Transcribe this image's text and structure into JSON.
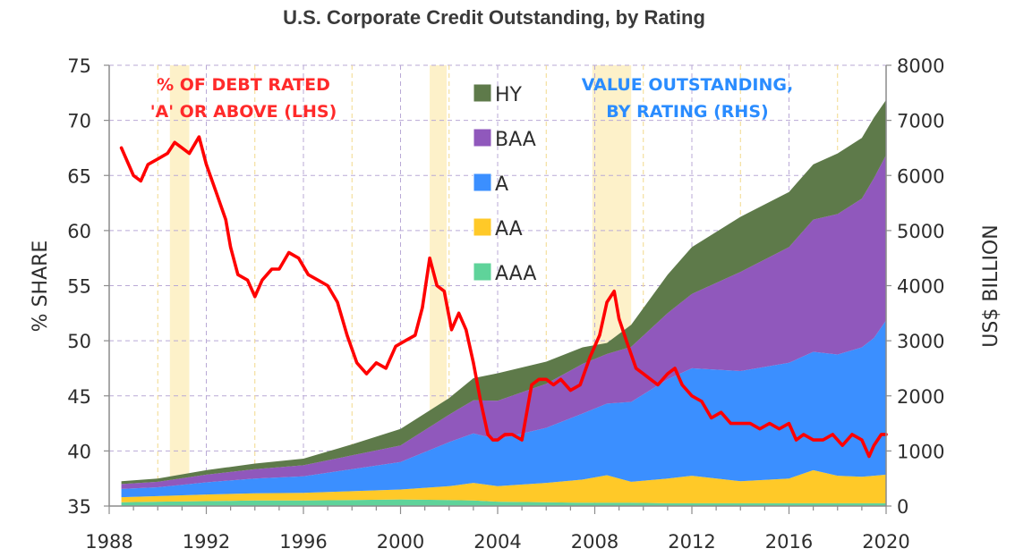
{
  "chart_data": {
    "type": "area",
    "title": "U.S. Corporate Credit Outstanding, by Rating",
    "ylabel_left": "% SHARE",
    "ylabel_right": "US$ BILLION",
    "xlim": [
      1988,
      2020
    ],
    "ylim_left": [
      35,
      75
    ],
    "ylim_right": [
      0,
      8000
    ],
    "x_ticks": [
      1988,
      1992,
      1996,
      2000,
      2004,
      2008,
      2012,
      2016,
      2020
    ],
    "y_left_ticks": [
      35,
      40,
      45,
      50,
      55,
      60,
      65,
      70,
      75
    ],
    "y_right_ticks": [
      0,
      1000,
      2000,
      3000,
      4000,
      5000,
      6000,
      7000,
      8000
    ],
    "grid": true,
    "legend_position": "top-center",
    "recession_shading": [
      [
        1990.5,
        1991.3
      ],
      [
        2001.2,
        2001.9
      ],
      [
        2007.9,
        2009.5
      ]
    ],
    "annotations": [
      {
        "lines": [
          "% OF DEBT RATED",
          "'A' OR ABOVE (LHS)"
        ],
        "color": "#ff2a2a"
      },
      {
        "lines": [
          "VALUE OUTSTANDING,",
          "BY RATING (RHS)"
        ],
        "color": "#2a8cff"
      }
    ],
    "x": [
      1988.5,
      1990,
      1992,
      1994,
      1996,
      1998,
      2000,
      2002,
      2003,
      2004,
      2006,
      2007.5,
      2008.5,
      2009.5,
      2011,
      2012,
      2014,
      2016,
      2017,
      2018,
      2019,
      2019.5,
      2020
    ],
    "series": [
      {
        "name": "AAA",
        "axis": "right",
        "color": "#5fd39a",
        "values": [
          70,
          80,
          90,
          100,
          100,
          110,
          120,
          110,
          100,
          80,
          70,
          60,
          60,
          60,
          50,
          50,
          50,
          50,
          50,
          50,
          50,
          50,
          50
        ]
      },
      {
        "name": "AA",
        "axis": "right",
        "color": "#ffc928",
        "values": [
          90,
          100,
          120,
          130,
          140,
          160,
          180,
          250,
          320,
          280,
          350,
          420,
          500,
          380,
          450,
          500,
          400,
          450,
          600,
          500,
          480,
          500,
          520
        ]
      },
      {
        "name": "A",
        "axis": "right",
        "color": "#3b8fff",
        "values": [
          150,
          160,
          220,
          270,
          300,
          400,
          500,
          800,
          900,
          850,
          1000,
          1200,
          1300,
          1450,
          1800,
          1950,
          2000,
          2100,
          2150,
          2200,
          2350,
          2500,
          2800
        ]
      },
      {
        "name": "BAA",
        "axis": "right",
        "color": "#9058bc",
        "values": [
          90,
          100,
          140,
          170,
          200,
          250,
          300,
          500,
          600,
          700,
          800,
          900,
          900,
          1000,
          1200,
          1350,
          1800,
          2100,
          2400,
          2550,
          2700,
          2900,
          3000
        ]
      },
      {
        "name": "HY",
        "axis": "right",
        "color": "#5e7a4a",
        "values": [
          50,
          60,
          80,
          100,
          120,
          200,
          300,
          300,
          400,
          500,
          400,
          300,
          200,
          400,
          700,
          850,
          1000,
          1000,
          1000,
          1100,
          1100,
          1100,
          1000
        ]
      },
      {
        "name": "% OF DEBT RATED 'A' OR ABOVE",
        "axis": "left",
        "color": "#ff0000",
        "x": [
          1988.5,
          1988.8,
          1989.0,
          1989.3,
          1989.6,
          1990.0,
          1990.4,
          1990.7,
          1991.0,
          1991.3,
          1991.7,
          1992.0,
          1992.4,
          1992.8,
          1993.0,
          1993.3,
          1993.7,
          1994.0,
          1994.3,
          1994.7,
          1995.0,
          1995.4,
          1995.8,
          1996.2,
          1996.6,
          1997.0,
          1997.4,
          1997.8,
          1998.2,
          1998.6,
          1999.0,
          1999.4,
          1999.8,
          2000.2,
          2000.6,
          2000.9,
          2001.2,
          2001.5,
          2001.8,
          2002.1,
          2002.4,
          2002.7,
          2003.0,
          2003.3,
          2003.6,
          2003.8,
          2004.0,
          2004.3,
          2004.6,
          2005.0,
          2005.4,
          2005.7,
          2006.0,
          2006.3,
          2006.6,
          2007.0,
          2007.4,
          2007.8,
          2008.2,
          2008.5,
          2008.8,
          2009.0,
          2009.3,
          2009.7,
          2010.0,
          2010.3,
          2010.6,
          2011.0,
          2011.3,
          2011.6,
          2012.0,
          2012.4,
          2012.8,
          2013.2,
          2013.6,
          2014.0,
          2014.4,
          2014.8,
          2015.2,
          2015.6,
          2016.0,
          2016.3,
          2016.6,
          2017.0,
          2017.4,
          2017.8,
          2018.2,
          2018.6,
          2019.0,
          2019.3,
          2019.5,
          2019.8,
          2020.0
        ],
        "values": [
          67.5,
          66.0,
          65.0,
          64.5,
          66.0,
          66.5,
          67.0,
          68.0,
          67.5,
          67.0,
          68.5,
          66.0,
          63.5,
          61.0,
          58.5,
          56.0,
          55.5,
          54.0,
          55.5,
          56.5,
          56.5,
          58.0,
          57.5,
          56.0,
          55.5,
          55.0,
          53.5,
          50.5,
          48.0,
          47.0,
          48.0,
          47.5,
          49.5,
          50.0,
          50.5,
          53.0,
          57.5,
          55.0,
          54.5,
          51.0,
          52.5,
          51.0,
          48.0,
          44.5,
          41.5,
          41.0,
          41.0,
          41.5,
          41.5,
          41.0,
          46.0,
          46.5,
          46.5,
          46.0,
          46.5,
          45.5,
          46.0,
          48.5,
          50.5,
          53.5,
          54.5,
          52.0,
          50.0,
          47.5,
          47.0,
          46.5,
          46.0,
          47.0,
          47.5,
          46.0,
          45.0,
          44.5,
          43.0,
          43.5,
          42.5,
          42.5,
          42.5,
          42.0,
          42.5,
          42.0,
          42.5,
          41.0,
          41.5,
          41.0,
          41.0,
          41.5,
          40.5,
          41.5,
          41.0,
          39.5,
          40.5,
          41.5,
          41.5
        ]
      }
    ]
  }
}
